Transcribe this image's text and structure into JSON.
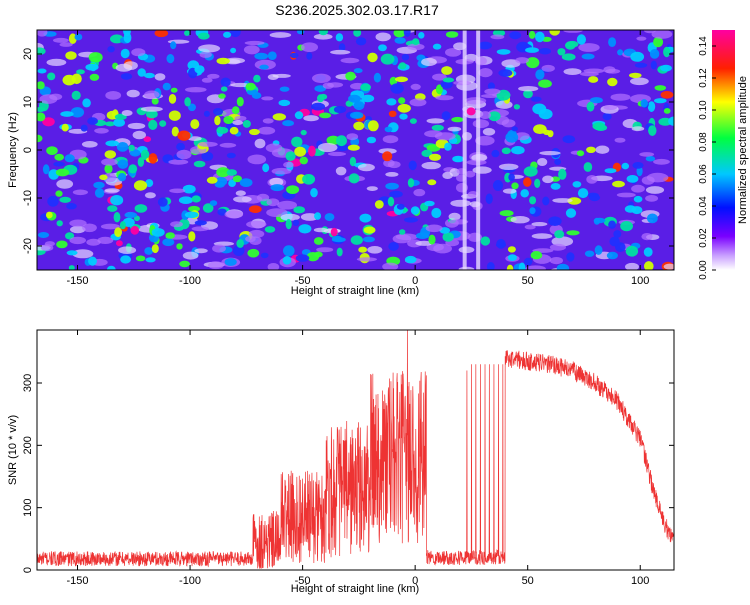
{
  "title": "S236.2025.302.03.17.R17",
  "colors": {
    "snr_line": "#ee3333",
    "axis": "#000000",
    "background": "#ffffff"
  },
  "chart_data": [
    {
      "type": "heatmap",
      "name": "spectrogram",
      "xlabel": "Height of straight line (km)",
      "ylabel": "Frequency (Hz)",
      "xlim": [
        -168,
        115
      ],
      "ylim": [
        -25,
        25
      ],
      "xticks": [
        -150,
        -100,
        -50,
        0,
        50,
        100
      ],
      "yticks": [
        -20,
        -10,
        0,
        10,
        20
      ],
      "colorbar": {
        "label": "Normalized spectral amplitude",
        "range": [
          0,
          0.15
        ],
        "ticks": [
          "0.00",
          "0.02",
          "0.04",
          "0.06",
          "0.08",
          "0.10",
          "0.12",
          "0.14"
        ],
        "colormap": [
          "#ffffff",
          "#8800ff",
          "#0000ff",
          "#00ccff",
          "#00ff00",
          "#ffff00",
          "#ff0000",
          "#ff00aa"
        ]
      },
      "features": [
        {
          "x_km": 22,
          "freq_hz": [
            -25,
            25
          ],
          "note": "low-amplitude vertical band"
        },
        {
          "x_km": 28,
          "freq_hz": [
            -25,
            25
          ],
          "note": "low-amplitude vertical band"
        }
      ]
    },
    {
      "type": "line",
      "name": "snr",
      "xlabel": "Height of straight line (km)",
      "ylabel": "SNR (10 * v/v)",
      "xlim": [
        -168,
        115
      ],
      "ylim": [
        0,
        385
      ],
      "xticks": [
        -150,
        -100,
        -50,
        0,
        50,
        100
      ],
      "yticks": [
        0,
        100,
        200,
        300
      ],
      "segments": [
        {
          "x": [
            -168,
            -72
          ],
          "mean": 18,
          "spread": 12,
          "desc": "noise floor"
        },
        {
          "x": [
            -72,
            -60
          ],
          "mean": 45,
          "spread": 50,
          "desc": "onset"
        },
        {
          "x": [
            -60,
            -40
          ],
          "mean": 85,
          "spread": 75,
          "desc": "rising"
        },
        {
          "x": [
            -40,
            -20
          ],
          "mean": 130,
          "spread": 110,
          "desc": "rising"
        },
        {
          "x": [
            -20,
            5
          ],
          "mean": 180,
          "spread": 140,
          "desc": "occultation"
        },
        {
          "x": [
            5,
            40
          ],
          "mean": 20,
          "spread": 12,
          "desc": "gap"
        },
        {
          "x": [
            40,
            115
          ],
          "curve": [
            [
              40,
              340
            ],
            [
              50,
              335
            ],
            [
              60,
              330
            ],
            [
              70,
              320
            ],
            [
              80,
              300
            ],
            [
              90,
              270
            ],
            [
              100,
              210
            ],
            [
              105,
              140
            ],
            [
              110,
              80
            ],
            [
              115,
              45
            ]
          ],
          "spread": 15,
          "desc": "free space, decaying"
        }
      ],
      "spikes": [
        {
          "x": -3.5,
          "y": 385
        },
        {
          "x": 23,
          "y": 320
        },
        {
          "x": 25,
          "y": 330
        },
        {
          "x": 27,
          "y": 330
        },
        {
          "x": 29,
          "y": 330
        },
        {
          "x": 31,
          "y": 330
        },
        {
          "x": 33,
          "y": 330
        },
        {
          "x": 35,
          "y": 330
        },
        {
          "x": 37,
          "y": 330
        },
        {
          "x": 39,
          "y": 330
        }
      ]
    }
  ]
}
